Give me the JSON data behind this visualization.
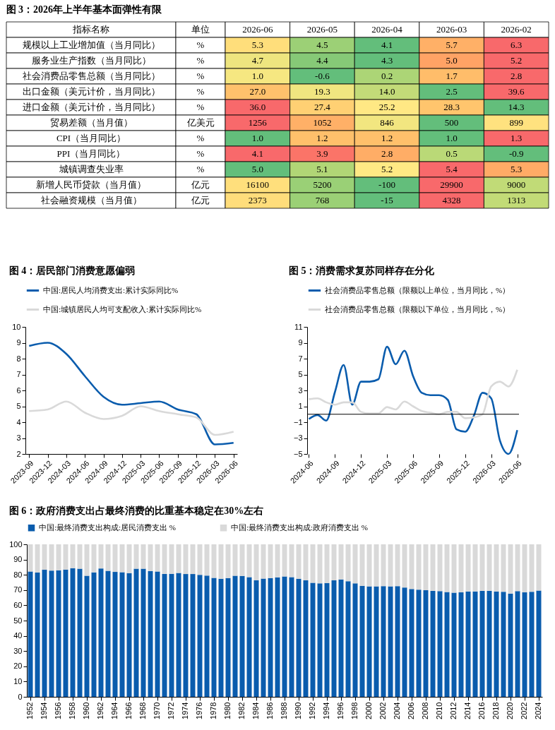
{
  "chart_data": [
    {
      "type": "heatmap",
      "title": "图 3：2026年上半年基本面弹性有限",
      "annotations": [
        "指标名称",
        "单位"
      ],
      "categories": [
        "2026-06",
        "2026-05",
        "2026-04",
        "2026-03",
        "2026-02"
      ],
      "y_categories": [
        "规模以上工业增加值（当月同比）",
        "服务业生产指数（当月同比）",
        "社会消费品零售总额（当月同比）",
        "出口金额（美元计价，当月同比）",
        "进口金额（美元计价，当月同比）",
        "贸易差额（当月值）",
        "CPI（当月同比）",
        "PPI（当月同比）",
        "城镇调查失业率",
        "新增人民币贷款（当月值）",
        "社会融资规模（当月值）"
      ],
      "y2_categories": [
        "%",
        "%",
        "%",
        "%",
        "%",
        "亿美元",
        "%",
        "%",
        "%",
        "亿元",
        "亿元"
      ],
      "cells": [
        [
          5.3,
          4.5,
          4.1,
          5.7,
          6.3
        ],
        [
          4.7,
          4.4,
          4.3,
          5.0,
          5.2
        ],
        [
          1.0,
          -0.6,
          0.2,
          1.7,
          2.8
        ],
        [
          27.0,
          19.3,
          14.0,
          2.5,
          39.6
        ],
        [
          36.0,
          27.4,
          25.2,
          28.3,
          14.3
        ],
        [
          1256,
          1052,
          846,
          500,
          899
        ],
        [
          1.0,
          1.2,
          1.2,
          1.0,
          1.3
        ],
        [
          4.1,
          3.9,
          2.8,
          0.5,
          -0.9
        ],
        [
          5.0,
          5.1,
          5.2,
          5.4,
          5.3
        ],
        [
          16100,
          5200,
          -100,
          29900,
          9000
        ],
        [
          2373,
          768,
          -15,
          4328,
          1313
        ]
      ],
      "cell_labels": [
        [
          "5.3",
          "4.5",
          "4.1",
          "5.7",
          "6.3"
        ],
        [
          "4.7",
          "4.4",
          "4.3",
          "5.0",
          "5.2"
        ],
        [
          "1.0",
          "-0.6",
          "0.2",
          "1.7",
          "2.8"
        ],
        [
          "27.0",
          "19.3",
          "14.0",
          "2.5",
          "39.6"
        ],
        [
          "36.0",
          "27.4",
          "25.2",
          "28.3",
          "14.3"
        ],
        [
          "1256",
          "1052",
          "846",
          "500",
          "899"
        ],
        [
          "1.0",
          "1.2",
          "1.2",
          "1.0",
          "1.3"
        ],
        [
          "4.1",
          "3.9",
          "2.8",
          "0.5",
          "-0.9"
        ],
        [
          "5.0",
          "5.1",
          "5.2",
          "5.4",
          "5.3"
        ],
        [
          "16100",
          "5200",
          "-100",
          "29900",
          "9000"
        ],
        [
          "2373",
          "768",
          "-15",
          "4328",
          "1313"
        ]
      ]
    },
    {
      "type": "line",
      "title": "图 4：居民部门消费意愿偏弱",
      "legend": "top",
      "categories": [
        "2023-09",
        "2023-12",
        "2024-03",
        "2024-06",
        "2024-09",
        "2024-12",
        "2025-03",
        "2025-06",
        "2025-09",
        "2025-12",
        "2026-03",
        "2026-06"
      ],
      "ylim": [
        2,
        10
      ],
      "yticks": [
        2,
        3,
        4,
        5,
        6,
        7,
        8,
        9,
        10
      ],
      "series": [
        {
          "name": "中国:居民人均消费支出:累计实际同比%",
          "color": "#0a5cad",
          "values": [
            8.8,
            9.0,
            8.3,
            6.9,
            5.6,
            5.1,
            5.2,
            5.3,
            4.8,
            4.5,
            2.6,
            2.7
          ]
        },
        {
          "name": "中国:城镇居民人均可支配收入:累计实际同比%",
          "color": "#d9d9d9",
          "values": [
            4.7,
            4.8,
            5.3,
            4.6,
            4.2,
            4.4,
            5.0,
            4.7,
            4.5,
            4.3,
            3.2,
            3.4
          ]
        }
      ]
    },
    {
      "type": "line",
      "title": "图 5：消费需求复苏同样存在分化",
      "legend": "top",
      "categories": [
        "2024-06",
        null,
        null,
        "2024-09",
        null,
        null,
        "2024-12",
        null,
        null,
        "2025-03",
        null,
        null,
        "2025-06",
        null,
        null,
        "2025-09",
        null,
        null,
        "2025-12",
        null,
        null,
        "2026-03",
        null,
        null,
        "2026-06"
      ],
      "ylim": [
        -5,
        11
      ],
      "yticks": [
        -5,
        -3,
        -1,
        1,
        3,
        5,
        7,
        9,
        11
      ],
      "ref_lines": [
        {
          "axis": "y",
          "value": 0
        }
      ],
      "series": [
        {
          "name": "社会消费品零售总额（限额以上单位，当月同比，%）",
          "color": "#0a5cad",
          "values": [
            -0.6,
            -0.1,
            -0.8,
            2.8,
            6.2,
            1.2,
            4.1,
            4.1,
            4.4,
            8.5,
            6.3,
            8.0,
            4.8,
            2.7,
            2.4,
            2.4,
            1.8,
            -1.9,
            -2.2,
            -0.2,
            2.7,
            2.0,
            -3.3,
            -5.0,
            -2.0
          ]
        },
        {
          "name": "社会消费品零售总额（限额以下单位，当月同比，%）",
          "color": "#d9d9d9",
          "values": [
            1.9,
            2.0,
            1.5,
            1.2,
            1.5,
            1.5,
            0.3,
            0.1,
            0.1,
            0.9,
            0.6,
            1.6,
            1.0,
            0.4,
            0.2,
            0.0,
            0.3,
            0.3,
            -0.5,
            -0.4,
            0.0,
            3.5,
            4.1,
            3.5,
            5.6
          ]
        }
      ]
    },
    {
      "type": "bar",
      "title": "图 6：政府消费支出占最终消费的比重基本稳定在30%左右",
      "legend": "top",
      "stacked": true,
      "categories": [
        "1952",
        null,
        "1954",
        null,
        "1956",
        null,
        "1958",
        null,
        "1960",
        null,
        "1962",
        null,
        "1964",
        null,
        "1966",
        null,
        "1968",
        null,
        "1970",
        null,
        "1972",
        null,
        "1974",
        null,
        "1976",
        null,
        "1978",
        null,
        "1980",
        null,
        "1982",
        null,
        "1984",
        null,
        "1986",
        null,
        "1988",
        null,
        "1990",
        null,
        "1992",
        null,
        "1994",
        null,
        "1996",
        null,
        "1998",
        null,
        "2000",
        null,
        "2002",
        null,
        "2004",
        null,
        "2006",
        null,
        "2008",
        null,
        "2010",
        null,
        "2012",
        null,
        "2014",
        null,
        "2016",
        null,
        "2018",
        null,
        "2020",
        null,
        "2022",
        null,
        "2024"
      ],
      "ylim": [
        0,
        100
      ],
      "yticks": [
        0,
        10,
        20,
        30,
        40,
        50,
        60,
        70,
        80,
        90,
        100
      ],
      "series": [
        {
          "name": "中国:最终消费支出构成:居民消费支出 %",
          "color": "#0a5cad",
          "values": [
            82.2,
            81.5,
            83.3,
            82.8,
            83.0,
            83.4,
            84.4,
            84.0,
            79.4,
            81.6,
            84.2,
            82.6,
            81.9,
            81.7,
            81.1,
            84.0,
            84.0,
            82.4,
            82.2,
            80.6,
            80.7,
            81.2,
            80.5,
            80.5,
            80.0,
            79.5,
            78.0,
            77.4,
            77.9,
            79.4,
            79.3,
            78.5,
            76.5,
            77.5,
            77.9,
            78.3,
            78.9,
            78.5,
            77.4,
            76.4,
            74.8,
            74.4,
            74.6,
            76.4,
            77.0,
            75.8,
            74.4,
            72.8,
            72.4,
            72.4,
            72.6,
            72.4,
            72.6,
            71.7,
            70.7,
            70.3,
            69.9,
            69.5,
            69.3,
            68.7,
            68.3,
            68.5,
            69.1,
            69.1,
            69.5,
            69.5,
            69.1,
            68.9,
            67.7,
            69.3,
            68.5,
            68.9,
            69.7
          ]
        },
        {
          "name": "中国:最终消费支出构成:政府消费支出 %",
          "color": "#d9d9d9",
          "values": [
            17.8,
            18.5,
            16.7,
            17.2,
            17.0,
            16.6,
            15.6,
            16.0,
            20.6,
            18.4,
            15.8,
            17.4,
            18.1,
            18.3,
            18.9,
            16.0,
            16.0,
            17.6,
            17.8,
            19.4,
            19.3,
            18.8,
            19.5,
            19.5,
            20.0,
            20.5,
            22.0,
            22.6,
            22.1,
            20.6,
            20.7,
            21.5,
            23.5,
            22.5,
            22.1,
            21.7,
            21.1,
            21.5,
            22.6,
            23.6,
            25.2,
            25.6,
            25.4,
            23.6,
            23.0,
            24.2,
            25.6,
            27.2,
            27.6,
            27.6,
            27.4,
            27.6,
            27.4,
            28.3,
            29.3,
            29.7,
            30.1,
            30.5,
            30.7,
            31.3,
            31.7,
            31.5,
            30.9,
            30.9,
            30.5,
            30.5,
            30.9,
            31.1,
            32.3,
            30.7,
            31.5,
            31.1,
            30.3
          ]
        }
      ]
    }
  ]
}
